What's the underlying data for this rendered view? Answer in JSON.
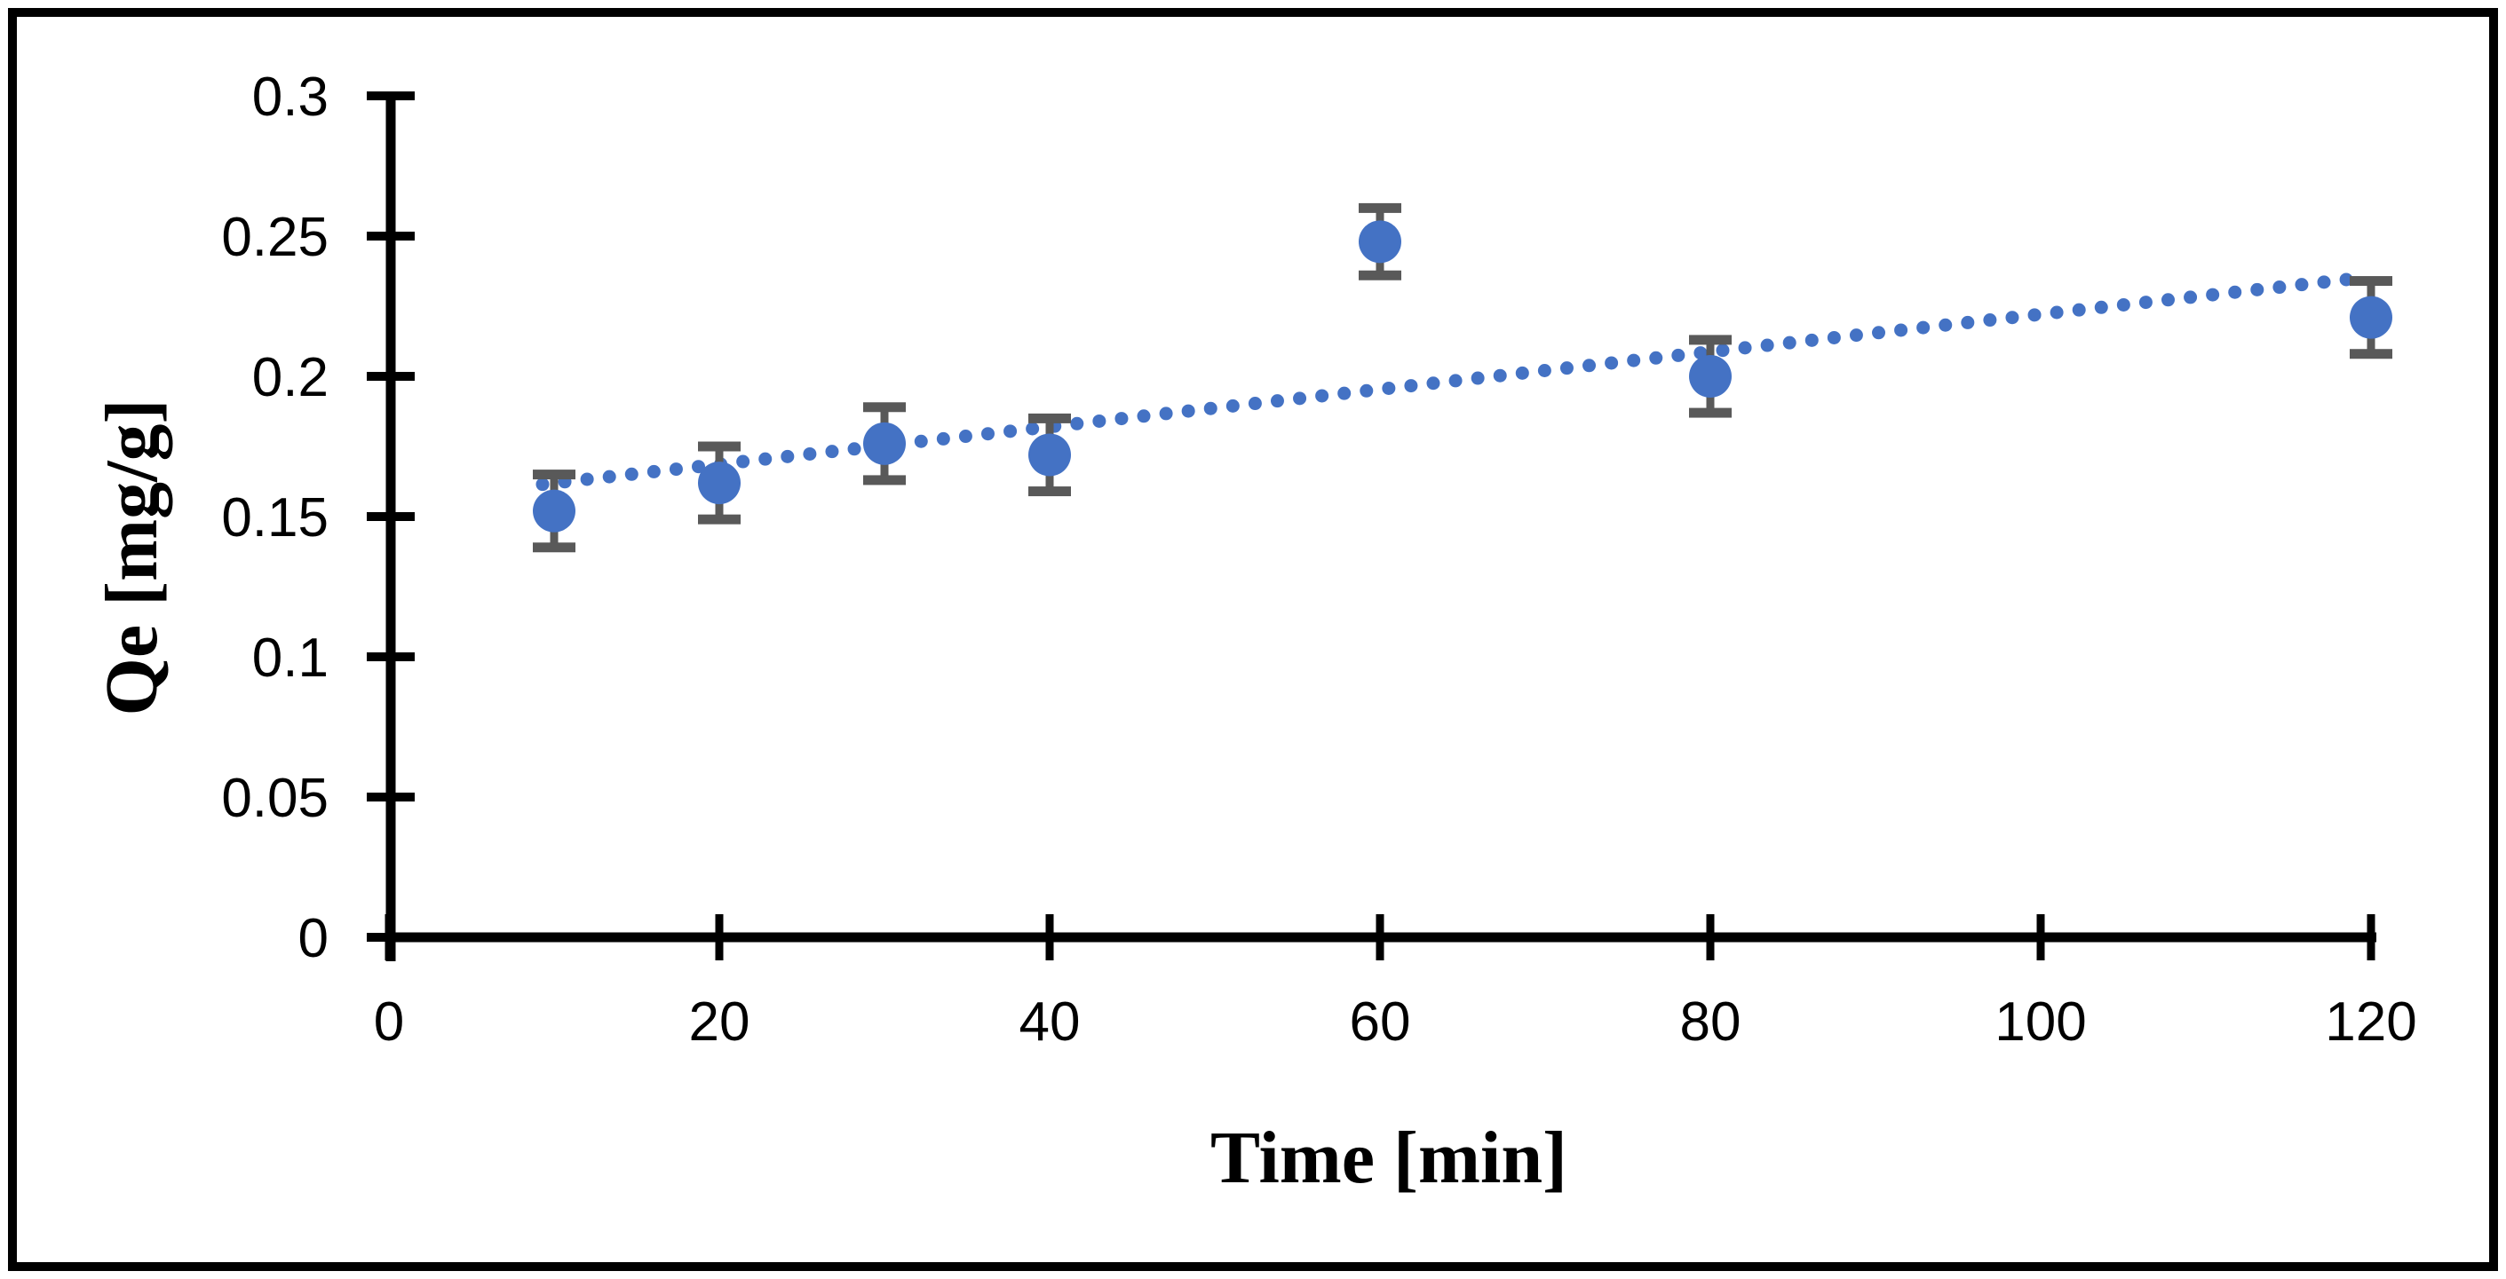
{
  "figure": {
    "background": "#ffffff",
    "border_color": "#000000"
  },
  "chart_data": {
    "type": "scatter",
    "title": "",
    "xlabel": "Time [min]",
    "ylabel": "Qe [mg/g]",
    "xlim": [
      0,
      120
    ],
    "ylim": [
      0,
      0.3
    ],
    "x_ticks": [
      0,
      20,
      40,
      60,
      80,
      100,
      120
    ],
    "x_tick_labels": [
      "0",
      "20",
      "40",
      "60",
      "80",
      "100",
      "120"
    ],
    "y_ticks": [
      0,
      0.05,
      0.1,
      0.15,
      0.2,
      0.25,
      0.3
    ],
    "y_tick_labels": [
      "0",
      "0.05",
      "0.1",
      "0.15",
      "0.2",
      "0.25",
      "0.3"
    ],
    "grid": false,
    "legend": false,
    "axis_color": "#000000",
    "series": [
      {
        "name": "Qe",
        "marker": "circle",
        "marker_color": "#4472C4",
        "error_bar_color": "#595959",
        "points": [
          {
            "t": 10,
            "qe": 0.152,
            "err": 0.013
          },
          {
            "t": 20,
            "qe": 0.162,
            "err": 0.013
          },
          {
            "t": 30,
            "qe": 0.176,
            "err": 0.013
          },
          {
            "t": 40,
            "qe": 0.172,
            "err": 0.013
          },
          {
            "t": 60,
            "qe": 0.248,
            "err": 0.012
          },
          {
            "t": 80,
            "qe": 0.2,
            "err": 0.013
          },
          {
            "t": 120,
            "qe": 0.221,
            "err": 0.013
          }
        ]
      }
    ],
    "trendline": {
      "style": "dotted",
      "color": "#4472C4",
      "t_start": 9.3,
      "v_start": 0.1615,
      "t_end": 118.5,
      "v_end": 0.2345
    }
  }
}
